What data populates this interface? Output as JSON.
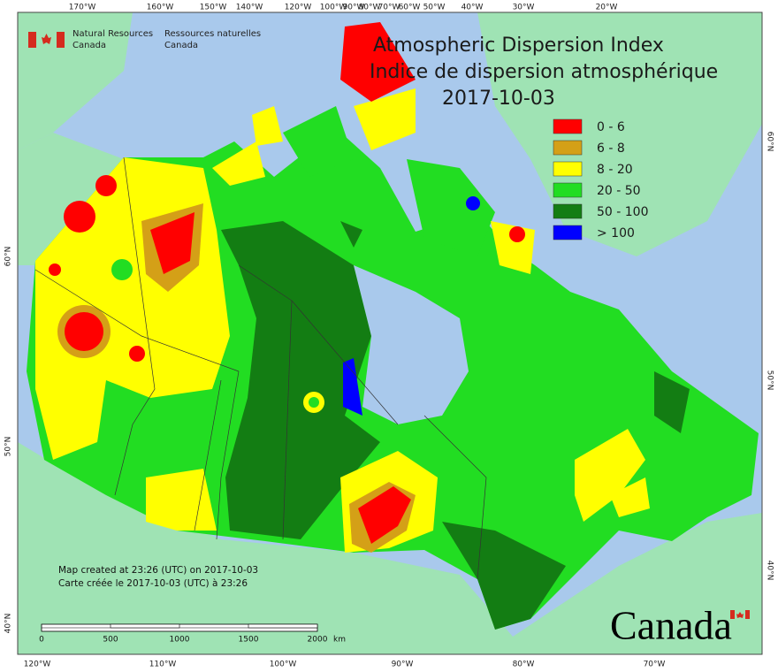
{
  "header": {
    "logo_en": [
      "Natural Resources",
      "Canada"
    ],
    "logo_fr": [
      "Ressources naturelles",
      "Canada"
    ]
  },
  "title": [
    "Atmospheric Dispersion Index",
    "Indice de dispersion atmosphérique"
  ],
  "date": "2017-10-03",
  "legend": [
    {
      "label": "0 - 6",
      "color": "#ff0000"
    },
    {
      "label": "6 - 8",
      "color": "#d4a017"
    },
    {
      "label": "8 - 20",
      "color": "#ffff00"
    },
    {
      "label": "20 - 50",
      "color": "#22dd22"
    },
    {
      "label": "50 - 100",
      "color": "#137d13"
    },
    {
      "label": "> 100",
      "color": "#0000ff"
    }
  ],
  "credits": [
    "Map created at 23:26 (UTC) on 2017-10-03",
    "Carte créée le 2017-10-03 (UTC) à 23:26"
  ],
  "scale_bar": {
    "labels": [
      "0",
      "500",
      "1000",
      "1500",
      "2000"
    ],
    "unit": "km"
  },
  "graticule": {
    "top": [
      "170°W",
      "160°W",
      "150°W",
      "140°W",
      "120°W",
      "100°W",
      "90°W",
      "80°W",
      "70°W",
      "60°W",
      "50°W",
      "40°W",
      "30°W",
      "20°W"
    ],
    "bottom": [
      "120°W",
      "110°W",
      "100°W",
      "90°W",
      "80°W",
      "70°W"
    ],
    "left": [
      "60°N",
      "50°N",
      "40°N"
    ],
    "right": [
      "60°N",
      "50°N",
      "40°N"
    ]
  },
  "wordmark": "Canada"
}
